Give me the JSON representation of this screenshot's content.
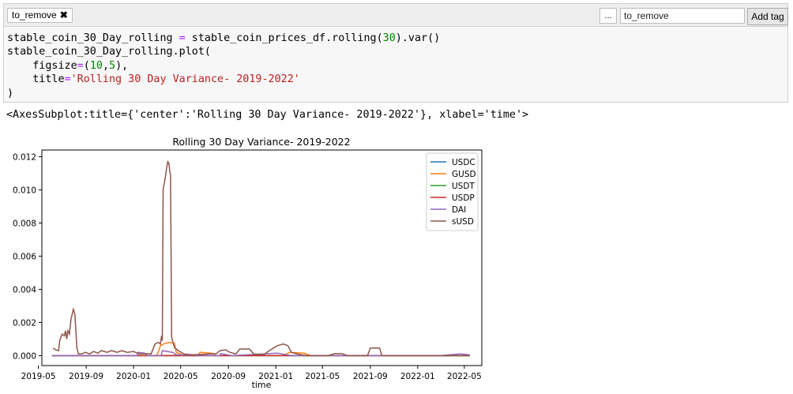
{
  "tagbar": {
    "tag_chip_label": "to_remove",
    "more_label": "...",
    "input_value": "to_remove",
    "add_tag_label": "Add tag"
  },
  "code": {
    "lines": [
      [
        {
          "t": "stable_coin_30_Day_rolling ",
          "c": ""
        },
        {
          "t": "=",
          "c": "op"
        },
        {
          "t": " stable_coin_prices_df.rolling(",
          "c": ""
        },
        {
          "t": "30",
          "c": "num"
        },
        {
          "t": ").var()",
          "c": ""
        }
      ],
      [
        {
          "t": "stable_coin_30_Day_rolling.plot(",
          "c": ""
        }
      ],
      [
        {
          "t": "    figsize",
          "c": ""
        },
        {
          "t": "=",
          "c": "op"
        },
        {
          "t": "(",
          "c": ""
        },
        {
          "t": "10",
          "c": "num"
        },
        {
          "t": ",",
          "c": ""
        },
        {
          "t": "5",
          "c": "num"
        },
        {
          "t": "),",
          "c": ""
        }
      ],
      [
        {
          "t": "    title",
          "c": ""
        },
        {
          "t": "=",
          "c": "op"
        },
        {
          "t": "'Rolling 30 Day Variance- 2019-2022'",
          "c": "str"
        }
      ],
      [
        {
          "t": ")",
          "c": ""
        }
      ]
    ]
  },
  "output": {
    "repr": "<AxesSubplot:title={'center':'Rolling 30 Day Variance- 2019-2022'}, xlabel='time'>"
  },
  "chart_data": {
    "type": "line",
    "title": "Rolling 30 Day Variance- 2019-2022",
    "xlabel": "time",
    "ylabel": "",
    "xlim": [
      "2019-05-10",
      "2022-06-15"
    ],
    "ylim": [
      -0.0006,
      0.0124
    ],
    "x_ticks": [
      "2019-05",
      "2019-09",
      "2020-01",
      "2020-05",
      "2020-09",
      "2021-01",
      "2021-05",
      "2021-09",
      "2022-01",
      "2022-05"
    ],
    "y_ticks": [
      0.0,
      0.002,
      0.004,
      0.006,
      0.008,
      0.01,
      0.012
    ],
    "y_tick_labels": [
      "0.000",
      "0.002",
      "0.004",
      "0.006",
      "0.008",
      "0.010",
      "0.012"
    ],
    "legend_position": "top-right",
    "grid": false,
    "series": [
      {
        "name": "USDC",
        "color": "#1f77b4",
        "points": [
          [
            "2019-06-05",
            0.0
          ],
          [
            "2022-05-15",
            0.0
          ]
        ]
      },
      {
        "name": "GUSD",
        "color": "#ff7f0e",
        "points": [
          [
            "2019-06-05",
            0.0
          ],
          [
            "2020-03-01",
            0.0
          ],
          [
            "2020-03-05",
            0.00025
          ],
          [
            "2020-03-10",
            0.0006
          ],
          [
            "2020-03-18",
            0.0007
          ],
          [
            "2020-04-01",
            0.0008
          ],
          [
            "2020-04-15",
            0.00075
          ],
          [
            "2020-04-20",
            0.0002
          ],
          [
            "2020-05-10",
            0.0
          ],
          [
            "2020-06-15",
            0.0
          ],
          [
            "2020-06-20",
            0.0002
          ],
          [
            "2020-07-20",
            0.00015
          ],
          [
            "2020-08-01",
            0.0
          ],
          [
            "2021-01-20",
            0.0
          ],
          [
            "2021-02-05",
            0.0002
          ],
          [
            "2021-03-15",
            0.00015
          ],
          [
            "2021-04-01",
            0.0
          ],
          [
            "2022-05-15",
            0.0
          ]
        ]
      },
      {
        "name": "USDT",
        "color": "#2ca02c",
        "points": [
          [
            "2019-06-05",
            0.0
          ],
          [
            "2022-05-15",
            0.0
          ]
        ]
      },
      {
        "name": "USDP",
        "color": "#d62728",
        "points": [
          [
            "2019-06-05",
            0.0
          ],
          [
            "2022-05-15",
            0.0
          ]
        ]
      },
      {
        "name": "DAI",
        "color": "#9467bd",
        "points": [
          [
            "2019-06-05",
            0.0
          ],
          [
            "2020-01-10",
            0.0
          ],
          [
            "2020-01-12",
            0.0002
          ],
          [
            "2020-01-30",
            0.00015
          ],
          [
            "2020-02-05",
            0.0
          ],
          [
            "2020-03-12",
            0.0
          ],
          [
            "2020-03-15",
            0.0003
          ],
          [
            "2020-04-10",
            0.0002
          ],
          [
            "2020-04-20",
            5e-05
          ],
          [
            "2020-08-10",
            0.0
          ],
          [
            "2020-08-12",
            0.00012
          ],
          [
            "2020-09-10",
            0.0
          ],
          [
            "2021-01-05",
            0.00015
          ],
          [
            "2021-02-10",
            0.0
          ],
          [
            "2021-06-01",
            0.0
          ],
          [
            "2022-03-01",
            0.0
          ],
          [
            "2022-04-20",
            0.0001
          ],
          [
            "2022-05-15",
            5e-05
          ]
        ]
      },
      {
        "name": "sUSD",
        "color": "#8c564b",
        "points": [
          [
            "2019-06-08",
            0.00045
          ],
          [
            "2019-06-15",
            0.00035
          ],
          [
            "2019-06-22",
            0.0003
          ],
          [
            "2019-06-25",
            0.0009
          ],
          [
            "2019-07-01",
            0.0013
          ],
          [
            "2019-07-07",
            0.0012
          ],
          [
            "2019-07-10",
            0.0015
          ],
          [
            "2019-07-13",
            0.001
          ],
          [
            "2019-07-16",
            0.0015
          ],
          [
            "2019-07-20",
            0.0013
          ],
          [
            "2019-07-24",
            0.0022
          ],
          [
            "2019-07-30",
            0.0028
          ],
          [
            "2019-08-03",
            0.0025
          ],
          [
            "2019-08-08",
            0.0005
          ],
          [
            "2019-08-12",
            0.0001
          ],
          [
            "2019-08-20",
            0.0001
          ],
          [
            "2019-08-30",
            0.0002
          ],
          [
            "2019-09-10",
            0.0001
          ],
          [
            "2019-09-20",
            0.00025
          ],
          [
            "2019-10-01",
            0.00015
          ],
          [
            "2019-10-10",
            0.0003
          ],
          [
            "2019-10-25",
            0.0002
          ],
          [
            "2019-11-05",
            0.0003
          ],
          [
            "2019-11-20",
            0.0002
          ],
          [
            "2019-12-01",
            0.0003
          ],
          [
            "2019-12-15",
            0.0002
          ],
          [
            "2020-01-01",
            0.00025
          ],
          [
            "2020-01-15",
            0.0001
          ],
          [
            "2020-02-01",
            0.00012
          ],
          [
            "2020-02-15",
            0.0001
          ],
          [
            "2020-02-25",
            0.0007
          ],
          [
            "2020-03-05",
            0.0008
          ],
          [
            "2020-03-10",
            0.0007
          ],
          [
            "2020-03-13",
            0.0012
          ],
          [
            "2020-03-15",
            0.0009
          ],
          [
            "2020-03-17",
            0.01
          ],
          [
            "2020-03-20",
            0.0104
          ],
          [
            "2020-03-23",
            0.0108
          ],
          [
            "2020-03-26",
            0.0113
          ],
          [
            "2020-03-29",
            0.0117
          ],
          [
            "2020-04-01",
            0.0116
          ],
          [
            "2020-04-03",
            0.0111
          ],
          [
            "2020-04-05",
            0.0109
          ],
          [
            "2020-04-08",
            0.0011
          ],
          [
            "2020-04-15",
            0.0005
          ],
          [
            "2020-04-25",
            0.0003
          ],
          [
            "2020-05-10",
            0.0001
          ],
          [
            "2020-06-01",
            5e-05
          ],
          [
            "2020-07-15",
            0.0001
          ],
          [
            "2020-08-01",
            0.00012
          ],
          [
            "2020-08-10",
            0.0003
          ],
          [
            "2020-08-25",
            0.00035
          ],
          [
            "2020-09-05",
            0.0002
          ],
          [
            "2020-09-20",
            0.0001
          ],
          [
            "2020-10-01",
            0.0004
          ],
          [
            "2020-10-25",
            0.0004
          ],
          [
            "2020-11-05",
            0.0001
          ],
          [
            "2020-12-01",
            5e-05
          ],
          [
            "2020-12-15",
            0.0003
          ],
          [
            "2021-01-05",
            0.0006
          ],
          [
            "2021-01-20",
            0.0007
          ],
          [
            "2021-02-01",
            0.0006
          ],
          [
            "2021-02-10",
            0.0002
          ],
          [
            "2021-02-25",
            0.0001
          ],
          [
            "2021-03-20",
            0.0
          ],
          [
            "2021-05-15",
            0.0
          ],
          [
            "2021-06-01",
            0.00012
          ],
          [
            "2021-06-20",
            0.00012
          ],
          [
            "2021-07-05",
            0.0
          ],
          [
            "2021-08-25",
            0.0
          ],
          [
            "2021-09-01",
            0.00045
          ],
          [
            "2021-09-25",
            0.00045
          ],
          [
            "2021-10-01",
            0.0
          ],
          [
            "2022-05-15",
            0.0
          ]
        ]
      }
    ]
  }
}
